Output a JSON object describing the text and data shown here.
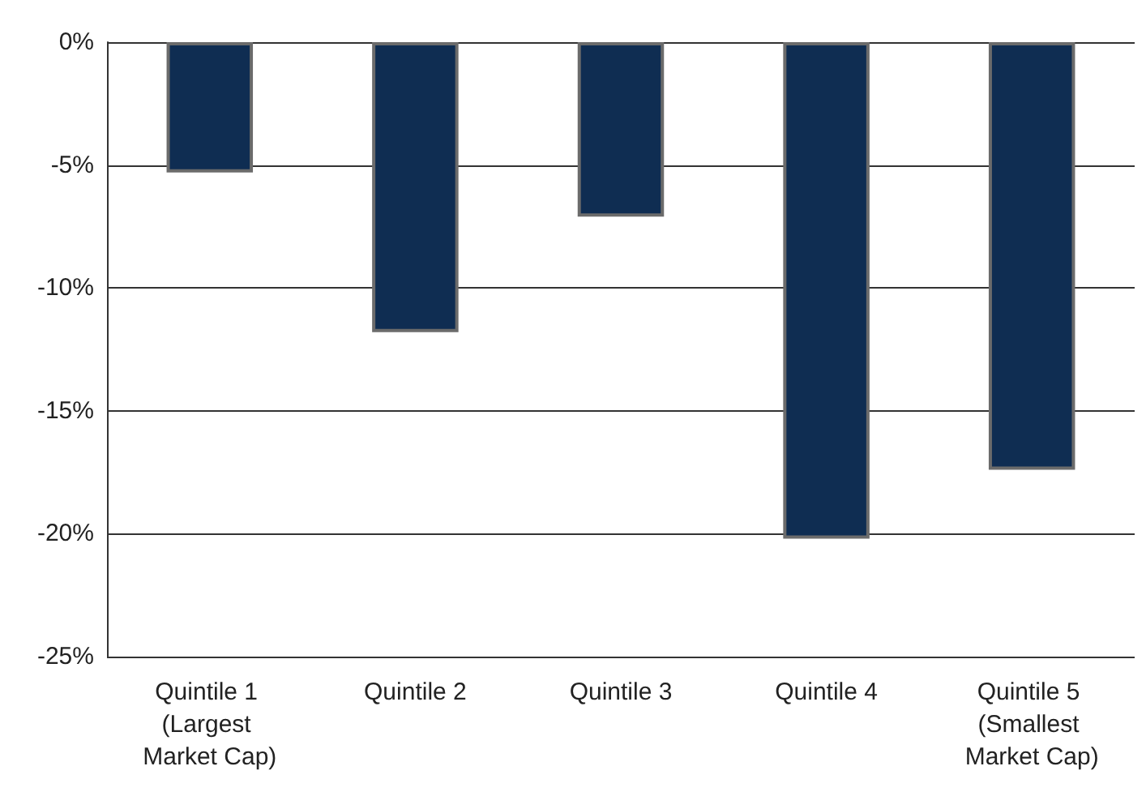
{
  "chart_data": {
    "type": "bar",
    "categories": [
      "Quintile 1 (Largest Market Cap)",
      "Quintile 2",
      "Quintile 3",
      "Quintile 4",
      "Quintile 5 (Smallest Market Cap)"
    ],
    "values": [
      -5.3,
      -11.8,
      -7.1,
      -20.2,
      -17.4
    ],
    "color": "#0f2d52",
    "ylim": [
      -25,
      0
    ],
    "yticks": [
      {
        "value": -25,
        "label": "-25%"
      },
      {
        "value": -20,
        "label": "-20%"
      },
      {
        "value": -15,
        "label": "-15%"
      },
      {
        "value": -10,
        "label": "-10%"
      },
      {
        "value": -5,
        "label": "-5%"
      },
      {
        "value": 0,
        "label": "0%"
      }
    ],
    "grid": "y"
  }
}
